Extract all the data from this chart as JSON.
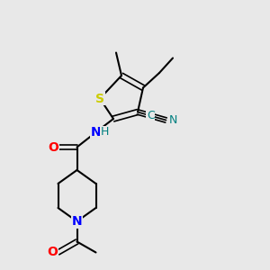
{
  "bg_color": "#e8e8e8",
  "atom_colors": {
    "C": "#000000",
    "N": "#0000ff",
    "O": "#ff0000",
    "S": "#cccc00",
    "CN": "#008080"
  },
  "bond_color": "#000000",
  "font_size": 9,
  "bold_font_size": 9
}
